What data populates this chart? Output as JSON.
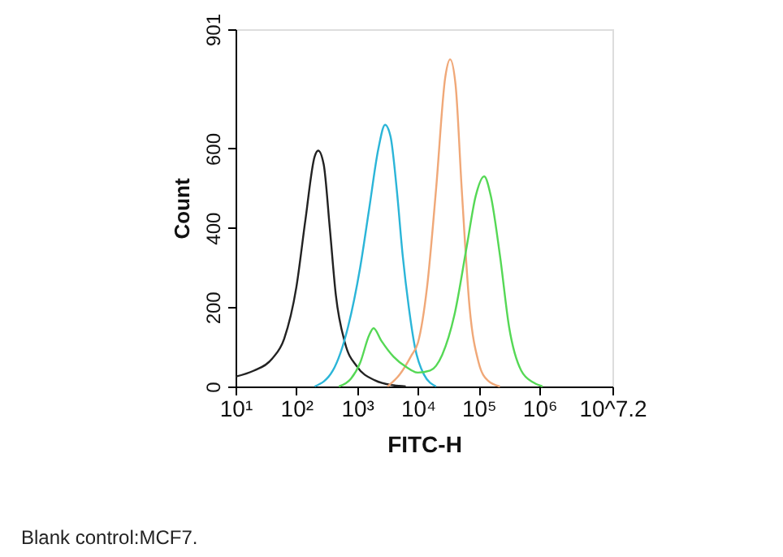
{
  "chart_data": {
    "type": "line",
    "xlabel": "FITC-H",
    "ylabel": "Count",
    "log": "x",
    "grid": false,
    "marker": "none",
    "line_style": "solid",
    "xlim": [
      10,
      15848932
    ],
    "ylim": [
      0,
      901
    ],
    "xticks": [
      {
        "value": 10,
        "label": "10¹"
      },
      {
        "value": 100,
        "label": "10²"
      },
      {
        "value": 1000,
        "label": "10³"
      },
      {
        "value": 10000,
        "label": "10⁴"
      },
      {
        "value": 100000,
        "label": "10⁵"
      },
      {
        "value": 1000000,
        "label": "10⁶"
      },
      {
        "value": 15848932,
        "label": "10^7.2"
      }
    ],
    "yticks": [
      0,
      200,
      400,
      600,
      901
    ],
    "annotations": [
      "Blank control:MCF7."
    ],
    "series": [
      {
        "color": "#222222",
        "x": [
          10,
          20,
          40,
          63,
          100,
          141,
          200,
          229,
          282,
          355,
          447,
          631,
          1000,
          1995,
          3981,
          6310
        ],
        "values": [
          25,
          40,
          70,
          120,
          250,
          420,
          580,
          595,
          560,
          400,
          230,
          110,
          50,
          15,
          3,
          0
        ]
      },
      {
        "color": "#2bb5d8",
        "x": [
          200,
          398,
          708,
          1122,
          1585,
          2239,
          2884,
          3548,
          4467,
          5623,
          7079,
          8913,
          12589,
          19953
        ],
        "values": [
          0,
          40,
          150,
          300,
          450,
          600,
          660,
          630,
          500,
          330,
          200,
          100,
          30,
          0
        ]
      },
      {
        "color": "#f0a878",
        "x": [
          3162,
          5012,
          7943,
          10000,
          14125,
          19953,
          28184,
          33884,
          41687,
          52481,
          70795,
          100000,
          141254,
          223872
        ],
        "values": [
          0,
          30,
          80,
          110,
          250,
          500,
          780,
          825,
          760,
          500,
          200,
          60,
          15,
          0
        ]
      },
      {
        "color": "#55d855",
        "x": [
          501,
          794,
          1122,
          1585,
          1862,
          2512,
          3981,
          6310,
          10000,
          15849,
          25119,
          39811,
          63096,
          89125,
          123027,
          158489,
          223872,
          316228,
          501187,
          794328,
          1122018
        ],
        "values": [
          0,
          20,
          60,
          130,
          147,
          115,
          75,
          50,
          35,
          40,
          80,
          180,
          350,
          480,
          530,
          480,
          330,
          150,
          40,
          10,
          0
        ]
      }
    ]
  }
}
